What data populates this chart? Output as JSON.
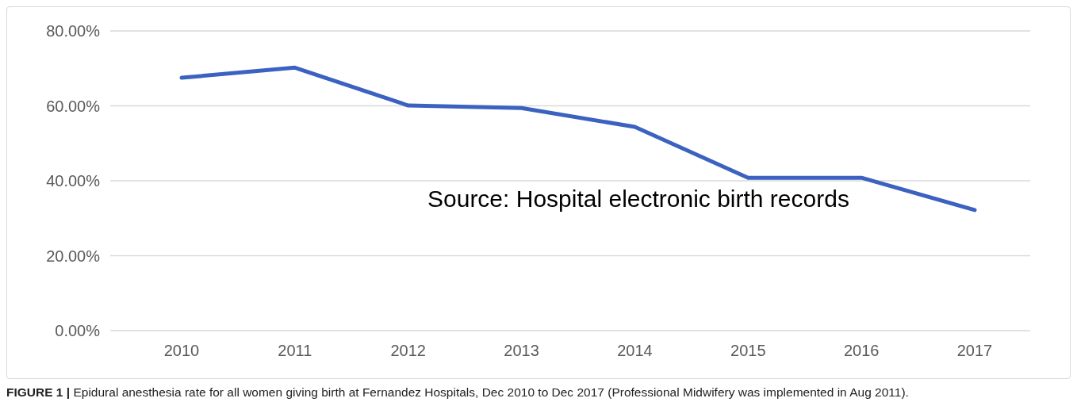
{
  "chart_data": {
    "type": "line",
    "categories": [
      "2010",
      "2011",
      "2012",
      "2013",
      "2014",
      "2015",
      "2016",
      "2017"
    ],
    "series": [
      {
        "color": "#3b62c0",
        "values": [
          67.5,
          70.2,
          60.1,
          59.4,
          54.4,
          40.8,
          40.8,
          32.2
        ]
      }
    ],
    "ylim": [
      0,
      80
    ],
    "yticks": [
      {
        "value": 0,
        "label": "0.00%"
      },
      {
        "value": 20,
        "label": "20.00%"
      },
      {
        "value": 40,
        "label": "40.00%"
      },
      {
        "value": 60,
        "label": "60.00%"
      },
      {
        "value": 80,
        "label": "80.00%"
      }
    ],
    "grid": "y",
    "marker": "none",
    "line_style": "solid",
    "legend": false,
    "annotations": [
      "Source: Hospital electronic birth records",
      "FIGURE 1 |",
      "Epidural anesthesia rate for all women giving birth at Fernandez Hospitals, Dec 2010 to Dec 2017 (Professional Midwifery was implemented in Aug 2011)."
    ]
  }
}
